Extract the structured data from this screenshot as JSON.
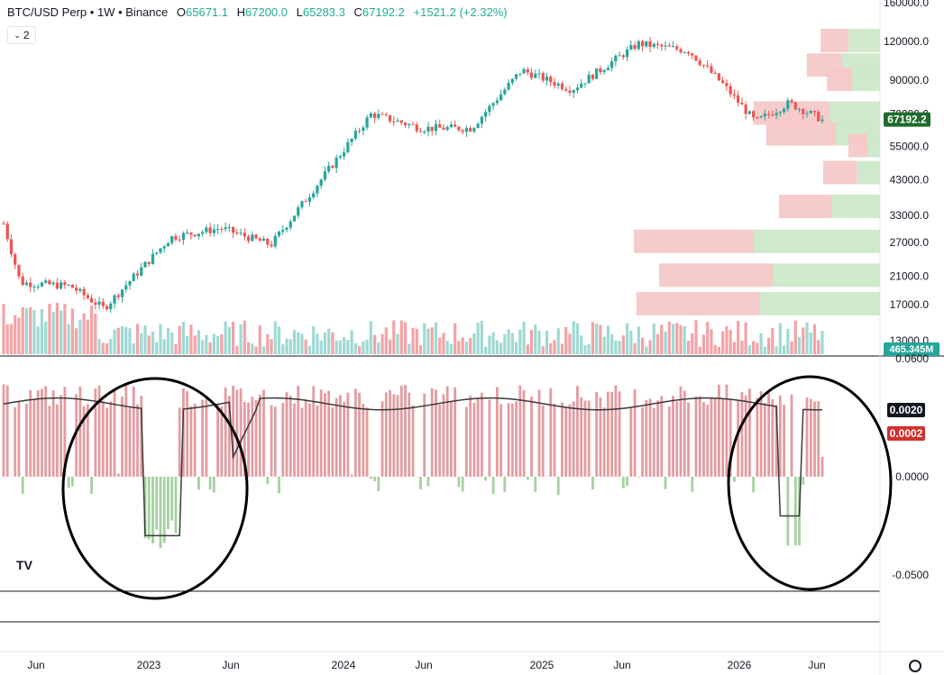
{
  "header": {
    "symbol": "BTC/USD Perp",
    "interval": "1W",
    "exchange": "Binance",
    "sep": "•",
    "o_label": "O",
    "o_value": "65671.1",
    "h_label": "H",
    "h_value": "67200.0",
    "l_label": "L",
    "l_value": "65283.3",
    "c_label": "C",
    "c_value": "67192.2",
    "change": "+1521.2 (+2.32%)"
  },
  "interval_button": {
    "label": "2",
    "icon": "chevron-down-icon"
  },
  "price_axis": {
    "ticks": [
      {
        "value": 160000,
        "label": "160000.0"
      },
      {
        "value": 120000,
        "label": "120000.0"
      },
      {
        "value": 90000,
        "label": "90000.0"
      },
      {
        "value": 70000,
        "label": "70000.0"
      },
      {
        "value": 55000,
        "label": "55000.0"
      },
      {
        "value": 43000,
        "label": "43000.0"
      },
      {
        "value": 33000,
        "label": "33000.0"
      },
      {
        "value": 27000,
        "label": "27000.0"
      },
      {
        "value": 21000,
        "label": "21000.0"
      },
      {
        "value": 17000,
        "label": "17000.0"
      },
      {
        "value": 13000,
        "label": "13000.0"
      }
    ],
    "last_price": "67192.2",
    "volume_badge": "465.345M"
  },
  "indicator_axis": {
    "ticks": [
      {
        "value": 0.06,
        "label": "0.0600"
      },
      {
        "value": 0.0,
        "label": "0.0000"
      },
      {
        "value": -0.05,
        "label": "-0.0500"
      }
    ],
    "line_value": "0.0020",
    "hist_value": "0.0002"
  },
  "time_axis": {
    "ticks": [
      "Jun",
      "2023",
      "Jun",
      "2024",
      "Jun",
      "2025",
      "Jun",
      "2026",
      "Jun"
    ]
  },
  "colors": {
    "up": "#26a69a",
    "down": "#ef5350",
    "vol_up": "#9fd9d3",
    "vol_down": "#f3a3a6",
    "vp_up": "#cde8c9",
    "vp_down": "#f6c8c8",
    "hist_pos": "#e39ca0",
    "hist_neg": "#a6d0a0",
    "last_price_bg": "#1f6b2e",
    "line_badge_bg": "#131722",
    "hist_badge_bg": "#d32f2f",
    "volume_badge_bg": "#26a69a"
  },
  "chart_data": {
    "type": "candlestick",
    "title": "BTC/USD Perp · 1W · Binance",
    "scale": "log",
    "price_range": [
      12000,
      165000
    ],
    "approx_weekly_close_path": [
      {
        "date": "2022-05",
        "price": 31000
      },
      {
        "date": "2022-06",
        "price": 20000
      },
      {
        "date": "2022-09",
        "price": 19500
      },
      {
        "date": "2022-11",
        "price": 16500
      },
      {
        "date": "2023-03",
        "price": 28000
      },
      {
        "date": "2023-06",
        "price": 30000
      },
      {
        "date": "2023-09",
        "price": 26500
      },
      {
        "date": "2023-12",
        "price": 43000
      },
      {
        "date": "2024-03",
        "price": 70000
      },
      {
        "date": "2024-06",
        "price": 63000
      },
      {
        "date": "2024-09",
        "price": 63000
      },
      {
        "date": "2024-12",
        "price": 97000
      },
      {
        "date": "2025-03",
        "price": 84000
      },
      {
        "date": "2025-07",
        "price": 118000
      },
      {
        "date": "2025-10",
        "price": 112000
      },
      {
        "date": "2025-12",
        "price": 88000
      },
      {
        "date": "2026-02",
        "price": 66000
      },
      {
        "date": "2026-04",
        "price": 76000
      },
      {
        "date": "2026-06",
        "price": 67192.2
      }
    ],
    "volume_last": "465.345M",
    "volume_profile": [
      {
        "price": 120000,
        "up": 0.25,
        "down": 0.22
      },
      {
        "price": 100000,
        "up": 0.3,
        "down": 0.28
      },
      {
        "price": 90000,
        "up": 0.22,
        "down": 0.2
      },
      {
        "price": 70000,
        "up": 0.4,
        "down": 0.6
      },
      {
        "price": 60000,
        "up": 0.35,
        "down": 0.55
      },
      {
        "price": 55000,
        "up": 0.1,
        "down": 0.15
      },
      {
        "price": 45000,
        "up": 0.18,
        "down": 0.27
      },
      {
        "price": 35000,
        "up": 0.38,
        "down": 0.42
      },
      {
        "price": 27000,
        "up": 1.0,
        "down": 0.95
      },
      {
        "price": 21000,
        "up": 0.85,
        "down": 0.9
      },
      {
        "price": 17000,
        "up": 0.95,
        "down": 0.98
      }
    ],
    "indicator": {
      "line_last": 0.002,
      "hist_last": 0.0002,
      "range": [
        -0.065,
        0.065
      ]
    }
  }
}
